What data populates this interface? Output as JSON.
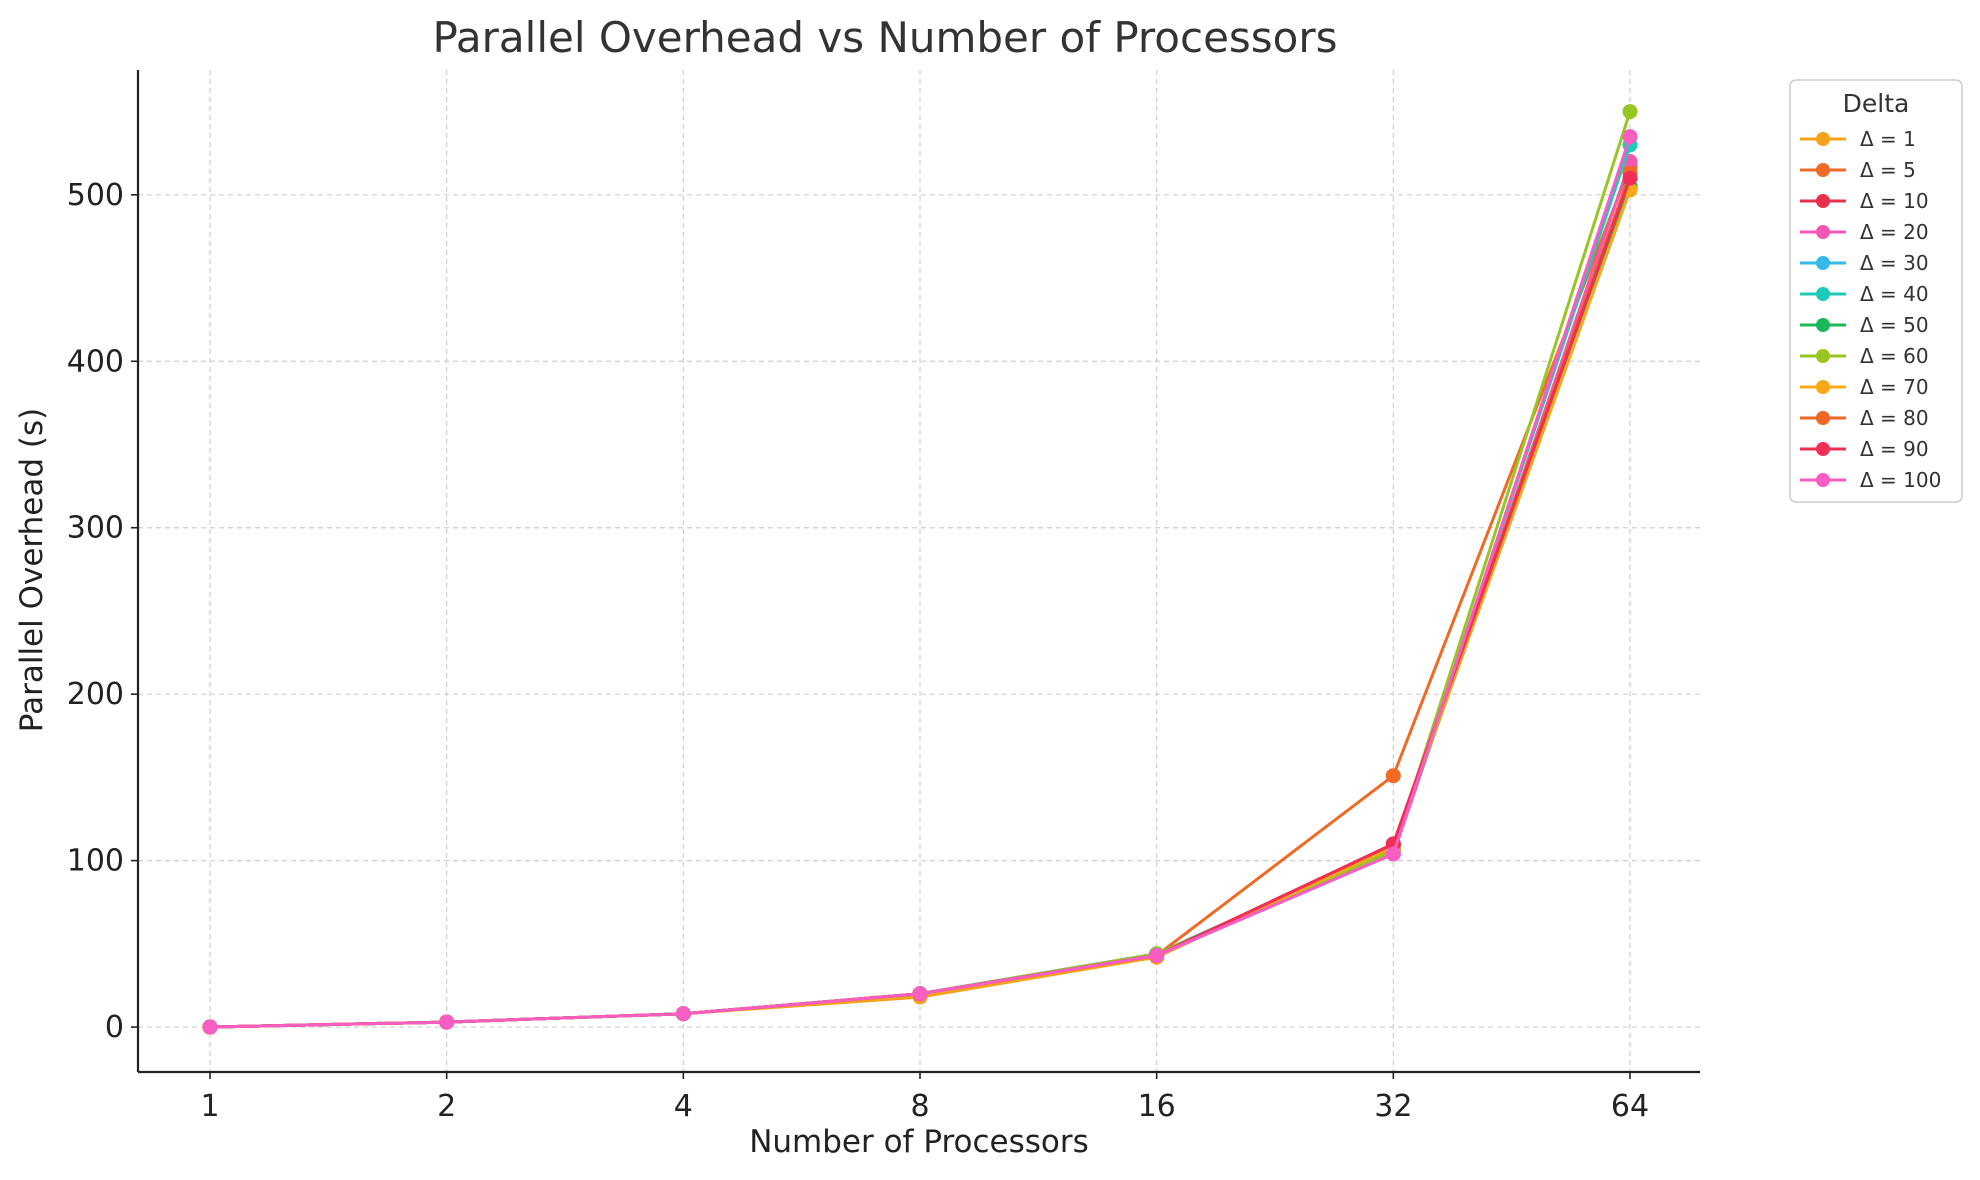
{
  "chart_data": {
    "type": "line",
    "title": "Parallel Overhead vs Number of Processors",
    "xlabel": "Number of Processors",
    "ylabel": "Parallel Overhead (s)",
    "x": [
      1,
      2,
      4,
      8,
      16,
      32,
      64
    ],
    "x_tick_labels": [
      "1",
      "2",
      "4",
      "8",
      "16",
      "32",
      "64"
    ],
    "x_scale": "log2",
    "y_ticks": [
      0,
      100,
      200,
      300,
      400,
      500
    ],
    "y_tick_labels": [
      "0",
      "100",
      "200",
      "300",
      "400",
      "500"
    ],
    "ylim": [
      -27,
      575
    ],
    "grid": true,
    "legend": {
      "title": "Delta",
      "placement": "outside right, top"
    },
    "series": [
      {
        "name": "Δ = 1",
        "color": "#f7a21b",
        "values": [
          0,
          3,
          8,
          18,
          42,
          108,
          505
        ]
      },
      {
        "name": "Δ = 5",
        "color": "#ef6a25",
        "values": [
          0,
          3,
          8,
          20,
          43,
          151,
          517
        ]
      },
      {
        "name": "Δ = 10",
        "color": "#e8304f",
        "values": [
          0,
          3,
          8,
          20,
          43,
          110,
          505
        ]
      },
      {
        "name": "Δ = 20",
        "color": "#f357b4",
        "values": [
          0,
          3,
          8,
          20,
          43,
          104,
          520
        ]
      },
      {
        "name": "Δ = 30",
        "color": "#35b8ea",
        "values": [
          0,
          3,
          8,
          20,
          44,
          108,
          503
        ]
      },
      {
        "name": "Δ = 40",
        "color": "#1ec9b8",
        "values": [
          0,
          3,
          8,
          20,
          44,
          106,
          530
        ]
      },
      {
        "name": "Δ = 50",
        "color": "#19b95a",
        "values": [
          0,
          3,
          8,
          20,
          44,
          107,
          505
        ]
      },
      {
        "name": "Δ = 60",
        "color": "#97c623",
        "values": [
          0,
          3,
          8,
          20,
          44,
          106,
          550
        ]
      },
      {
        "name": "Δ = 70",
        "color": "#f9a816",
        "values": [
          0,
          3,
          8,
          20,
          43,
          108,
          503
        ]
      },
      {
        "name": "Δ = 80",
        "color": "#ee6724",
        "values": [
          0,
          3,
          8,
          20,
          43,
          110,
          513
        ]
      },
      {
        "name": "Δ = 90",
        "color": "#ef2f55",
        "values": [
          0,
          3,
          8,
          20,
          43,
          110,
          510
        ]
      },
      {
        "name": "Δ = 100",
        "color": "#f65ec2",
        "values": [
          0,
          3,
          8,
          20,
          43,
          104,
          535
        ]
      }
    ]
  }
}
